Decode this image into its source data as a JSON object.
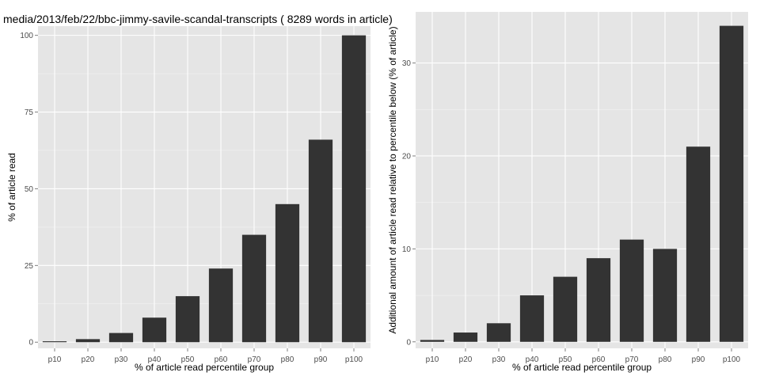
{
  "title": "media/2013/feb/22/bbc-jimmy-savile-scandal-transcripts ( 8289 words in article)",
  "chart_data": [
    {
      "type": "bar",
      "title": "media/2013/feb/22/bbc-jimmy-savile-scandal-transcripts ( 8289 words in article)",
      "categories": [
        "p10",
        "p20",
        "p30",
        "p40",
        "p50",
        "p60",
        "p70",
        "p80",
        "p90",
        "p100"
      ],
      "values": [
        0.3,
        1,
        3,
        8,
        15,
        24,
        35,
        45,
        66,
        100
      ],
      "xlabel": "% of article read percentile group",
      "ylabel": "% of article read",
      "ylim": [
        -2,
        103
      ],
      "yticks": [
        0,
        25,
        50,
        75,
        100
      ],
      "grid": true
    },
    {
      "type": "bar",
      "categories": [
        "p10",
        "p20",
        "p30",
        "p40",
        "p50",
        "p60",
        "p70",
        "p80",
        "p90",
        "p100"
      ],
      "values": [
        0.2,
        1,
        2,
        5,
        7,
        9,
        11,
        10,
        21,
        34
      ],
      "xlabel": "% of article read percentile group",
      "ylabel": "Additional amount of article read relative to percentile below (% of article)",
      "ylim": [
        -0.7,
        35.5
      ],
      "yticks": [
        0,
        10,
        20,
        30
      ],
      "grid": true
    }
  ],
  "colors": {
    "panel_background": "#e5e5e5",
    "grid_major": "#ffffff",
    "grid_minor": "#f2f2f2",
    "bar_fill": "#333333",
    "tick_label": "#4d4d4d",
    "axis_title": "#000000"
  }
}
